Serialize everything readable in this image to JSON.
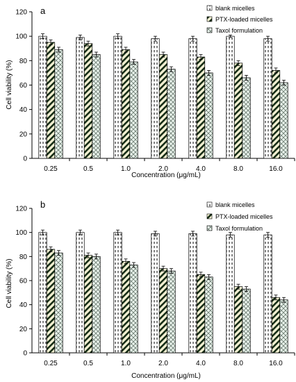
{
  "chart_data": [
    {
      "panel_label": "a",
      "type": "bar",
      "categories": [
        "0.25",
        "0.5",
        "1.0",
        "2.0",
        "4.0",
        "8.0",
        "16.0"
      ],
      "series": [
        {
          "name": "blank micelles",
          "values": [
            100,
            99,
            100,
            98,
            98,
            100,
            98
          ],
          "errors": [
            2,
            2,
            2,
            2,
            2,
            1,
            2
          ]
        },
        {
          "name": "PTX-loaded micelles",
          "values": [
            95,
            94,
            89,
            85,
            83,
            78,
            72
          ],
          "errors": [
            2,
            2,
            2,
            2,
            2,
            2,
            2
          ]
        },
        {
          "name": "Taxol formulation",
          "values": [
            89,
            85,
            79,
            73,
            70,
            66,
            62
          ],
          "errors": [
            2,
            2,
            2,
            2,
            2,
            2,
            2
          ]
        }
      ],
      "xlabel": "Concentration (μg/mL)",
      "ylabel": "Cell viability (%)",
      "ylim": [
        0,
        120
      ],
      "yticks": [
        "0",
        "20",
        "40",
        "60",
        "80",
        "100",
        "120"
      ],
      "legend_position": "top-right",
      "grid": false
    },
    {
      "panel_label": "b",
      "type": "bar",
      "categories": [
        "0.25",
        "0.5",
        "1.0",
        "2.0",
        "4.0",
        "8.0",
        "16.0"
      ],
      "series": [
        {
          "name": "blank micelles",
          "values": [
            100,
            100,
            100,
            99,
            99,
            98,
            98
          ],
          "errors": [
            2,
            2,
            2,
            2,
            2,
            2,
            2
          ]
        },
        {
          "name": "PTX-loaded micelles",
          "values": [
            86,
            81,
            76,
            70,
            65,
            55,
            46
          ],
          "errors": [
            2,
            2,
            2,
            2,
            2,
            2,
            2
          ]
        },
        {
          "name": "Taxol formulation",
          "values": [
            83,
            80,
            73,
            68,
            63,
            53,
            44
          ],
          "errors": [
            2,
            2,
            2,
            2,
            2,
            2,
            2
          ]
        }
      ],
      "xlabel": "Concentration (μg/mL)",
      "ylabel": "Cell viability (%)",
      "ylim": [
        0,
        120
      ],
      "yticks": [
        "0",
        "20",
        "40",
        "60",
        "80",
        "100",
        "120"
      ],
      "legend_position": "top-right",
      "grid": false
    }
  ]
}
